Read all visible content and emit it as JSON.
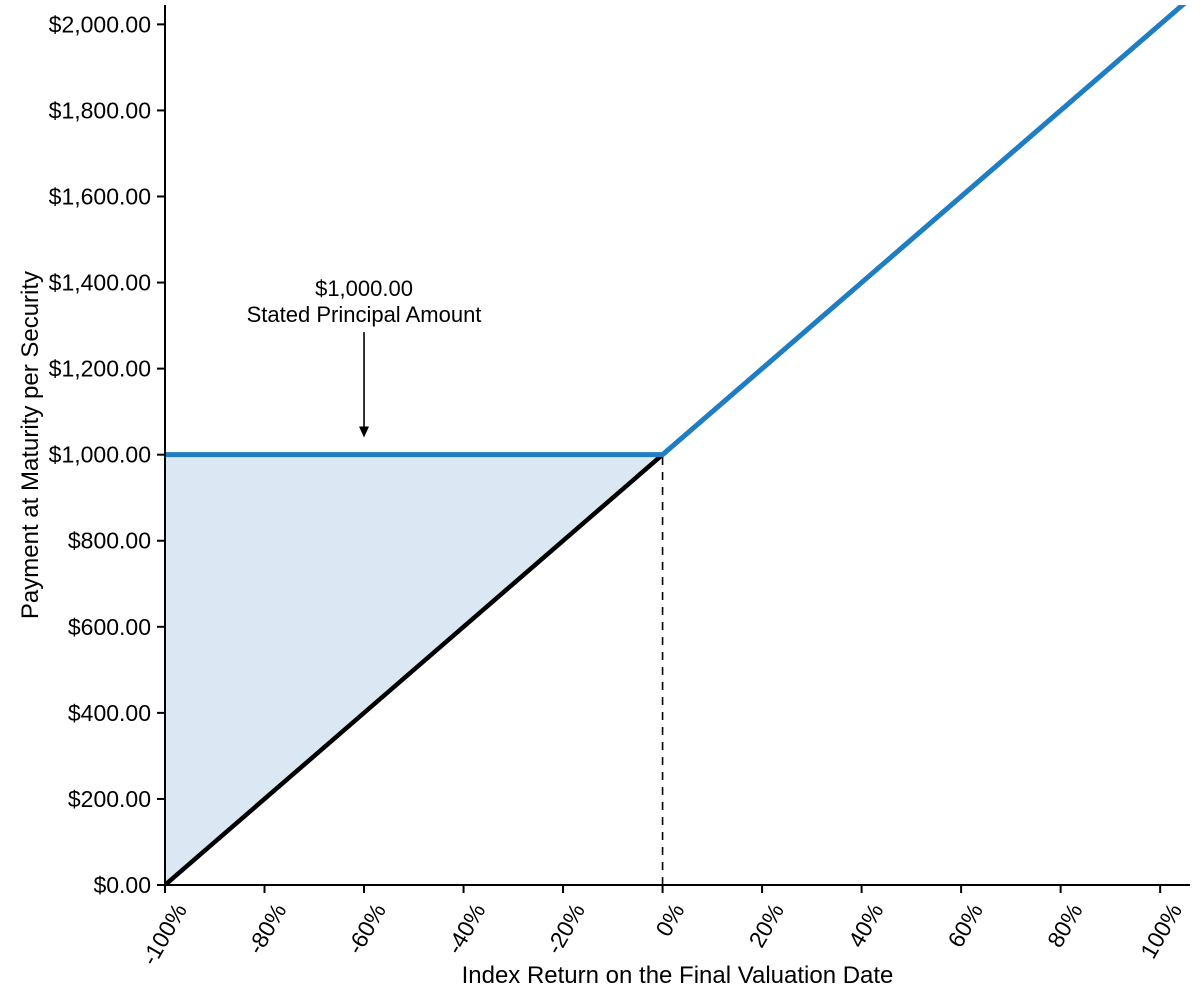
{
  "chart_data": {
    "type": "line",
    "title": "",
    "xlabel": "Index Return on the Final Valuation Date",
    "ylabel": "Payment at Maturity per Security",
    "xlim": [
      -100,
      106
    ],
    "ylim": [
      0,
      2045
    ],
    "grid": false,
    "legend": "none",
    "axis_color": "#000000",
    "x_ticks": [
      -100,
      -80,
      -60,
      -40,
      -20,
      0,
      20,
      40,
      60,
      80,
      100
    ],
    "x_tick_labels": [
      "-100%",
      "-80%",
      "-60%",
      "-40%",
      "-20%",
      "0%",
      "20%",
      "40%",
      "60%",
      "80%",
      "100%"
    ],
    "y_ticks": [
      0,
      200,
      400,
      600,
      800,
      1000,
      1200,
      1400,
      1600,
      1800,
      2000
    ],
    "y_tick_labels": [
      "$0.00",
      "$200.00",
      "$400.00",
      "$600.00",
      "$800.00",
      "$1,000.00",
      "$1,200.00",
      "$1,400.00",
      "$1,600.00",
      "$1,800.00",
      "$2,000.00"
    ],
    "series": [
      {
        "name": "index-return-line",
        "color": "#000000",
        "width": 4.5,
        "points": [
          [
            -100,
            0
          ],
          [
            106,
            2060
          ]
        ]
      },
      {
        "name": "payment-at-maturity-line",
        "color": "#1f7dc4",
        "width": 5,
        "points": [
          [
            -100,
            1000
          ],
          [
            0,
            1000
          ],
          [
            106,
            2060
          ]
        ]
      }
    ],
    "shaded_region": {
      "name": "principal-protection-area",
      "fill": "#dbe8f4",
      "points": [
        [
          -100,
          0
        ],
        [
          0,
          1000
        ],
        [
          -100,
          1000
        ]
      ]
    },
    "dashed_guide": {
      "x": 0,
      "y_from": 0,
      "y_to": 1000,
      "color": "#000000"
    },
    "annotation": {
      "line1": "$1,000.00",
      "line2": "Stated Principal Amount",
      "x": -60,
      "text_y": 1415,
      "arrow_from_y": 1285,
      "arrow_to_y": 1040
    }
  }
}
